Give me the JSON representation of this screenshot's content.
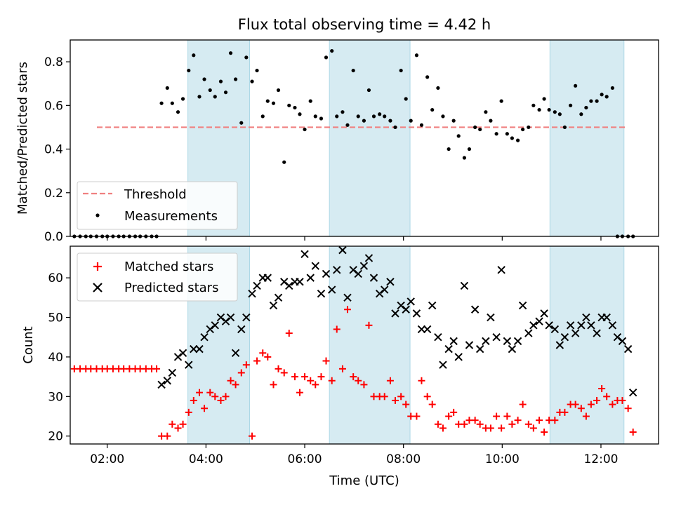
{
  "chart_data": [
    {
      "type": "scatter",
      "title": "Flux total observing time = 4.42 h",
      "xlabel": "",
      "ylabel": "Matched/Predicted stars",
      "xlim": [
        "01:15",
        "13:10"
      ],
      "ylim": [
        0,
        0.9
      ],
      "yticks": [
        "0.0",
        "0.2",
        "0.4",
        "0.6",
        "0.8"
      ],
      "grid": false,
      "legend_position": "lower-left",
      "highlight_windows": [
        [
          "03:38",
          "04:53"
        ],
        [
          "06:30",
          "08:08"
        ],
        [
          "10:58",
          "12:28"
        ]
      ],
      "series": [
        {
          "name": "Threshold",
          "style": "dashed-line",
          "color": "#f08080",
          "x": [
            "01:15",
            "12:30"
          ],
          "y": [
            0.5,
            0.5
          ]
        },
        {
          "name": "Measurements",
          "style": "dot",
          "color": "#000000",
          "x": [
            "01:20",
            "01:27",
            "01:34",
            "01:40",
            "01:47",
            "01:54",
            "02:00",
            "02:07",
            "02:14",
            "02:20",
            "02:27",
            "02:34",
            "02:40",
            "02:47",
            "02:54",
            "03:00",
            "03:06",
            "03:13",
            "03:19",
            "03:26",
            "03:32",
            "03:39",
            "03:45",
            "03:52",
            "03:58",
            "04:05",
            "04:11",
            "04:18",
            "04:24",
            "04:30",
            "04:36",
            "04:43",
            "04:49",
            "04:56",
            "05:02",
            "05:09",
            "05:15",
            "05:22",
            "05:28",
            "05:35",
            "05:41",
            "05:48",
            "05:54",
            "06:00",
            "06:07",
            "06:13",
            "06:20",
            "06:26",
            "06:33",
            "06:39",
            "06:46",
            "06:52",
            "06:59",
            "07:05",
            "07:12",
            "07:18",
            "07:24",
            "07:31",
            "07:37",
            "07:44",
            "07:50",
            "07:57",
            "08:03",
            "08:09",
            "08:16",
            "08:22",
            "08:29",
            "08:35",
            "08:42",
            "08:48",
            "08:55",
            "09:01",
            "09:07",
            "09:14",
            "09:20",
            "09:27",
            "09:33",
            "09:40",
            "09:46",
            "09:53",
            "09:59",
            "10:06",
            "10:12",
            "10:19",
            "10:25",
            "10:32",
            "10:38",
            "10:45",
            "10:51",
            "10:57",
            "11:04",
            "11:10",
            "11:16",
            "11:23",
            "11:29",
            "11:36",
            "11:42",
            "11:48",
            "11:55",
            "12:01",
            "12:07",
            "12:14",
            "12:20",
            "12:26",
            "12:33",
            "12:39"
          ],
          "y": [
            0,
            0,
            0,
            0,
            0,
            0,
            0,
            0,
            0,
            0,
            0,
            0,
            0,
            0,
            0,
            0,
            0.61,
            0.68,
            0.61,
            0.57,
            0.63,
            0.76,
            0.83,
            0.64,
            0.72,
            0.67,
            0.64,
            0.71,
            0.66,
            0.84,
            0.72,
            0.52,
            0.82,
            0.71,
            0.76,
            0.55,
            0.62,
            0.61,
            0.67,
            0.34,
            0.6,
            0.59,
            0.56,
            0.49,
            0.62,
            0.55,
            0.54,
            0.82,
            0.85,
            0.55,
            0.57,
            0.51,
            0.76,
            0.55,
            0.53,
            0.67,
            0.55,
            0.56,
            0.55,
            0.53,
            0.5,
            0.76,
            0.63,
            0.53,
            0.83,
            0.51,
            0.73,
            0.58,
            0.68,
            0.55,
            0.4,
            0.53,
            0.46,
            0.36,
            0.4,
            0.5,
            0.49,
            0.57,
            0.53,
            0.47,
            0.62,
            0.47,
            0.45,
            0.44,
            0.49,
            0.5,
            0.6,
            0.58,
            0.63,
            0.58,
            0.57,
            0.56,
            0.5,
            0.6,
            0.69,
            0.56,
            0.59,
            0.62,
            0.62,
            0.65,
            0.64,
            0.68,
            0.0,
            0.0,
            0.0,
            0.0
          ]
        }
      ]
    },
    {
      "type": "scatter",
      "title": "",
      "xlabel": "Time (UTC)",
      "ylabel": "Count",
      "xlim": [
        "01:15",
        "13:10"
      ],
      "ylim": [
        18,
        68
      ],
      "xticks": [
        "02:00",
        "04:00",
        "06:00",
        "08:00",
        "10:00",
        "12:00"
      ],
      "yticks": [
        "20",
        "30",
        "40",
        "50",
        "60"
      ],
      "grid": false,
      "legend_position": "top-left",
      "highlight_windows": [
        [
          "03:38",
          "04:53"
        ],
        [
          "06:30",
          "08:08"
        ],
        [
          "10:58",
          "12:28"
        ]
      ],
      "series": [
        {
          "name": "Matched stars",
          "marker": "+",
          "color": "#ff0000",
          "x": [
            "01:20",
            "01:27",
            "01:34",
            "01:40",
            "01:47",
            "01:54",
            "02:00",
            "02:07",
            "02:14",
            "02:20",
            "02:27",
            "02:34",
            "02:40",
            "02:47",
            "02:54",
            "03:00",
            "03:06",
            "03:13",
            "03:19",
            "03:26",
            "03:32",
            "03:39",
            "03:45",
            "03:52",
            "03:58",
            "04:05",
            "04:11",
            "04:18",
            "04:24",
            "04:30",
            "04:36",
            "04:43",
            "04:49",
            "04:56",
            "05:02",
            "05:09",
            "05:15",
            "05:22",
            "05:28",
            "05:35",
            "05:41",
            "05:48",
            "05:54",
            "06:00",
            "06:07",
            "06:13",
            "06:20",
            "06:26",
            "06:33",
            "06:39",
            "06:46",
            "06:52",
            "06:59",
            "07:05",
            "07:12",
            "07:18",
            "07:24",
            "07:31",
            "07:37",
            "07:44",
            "07:50",
            "07:57",
            "08:03",
            "08:09",
            "08:16",
            "08:22",
            "08:29",
            "08:35",
            "08:42",
            "08:48",
            "08:55",
            "09:01",
            "09:07",
            "09:14",
            "09:20",
            "09:27",
            "09:33",
            "09:40",
            "09:46",
            "09:53",
            "09:59",
            "10:06",
            "10:12",
            "10:19",
            "10:25",
            "10:32",
            "10:38",
            "10:45",
            "10:51",
            "10:57",
            "11:04",
            "11:10",
            "11:16",
            "11:23",
            "11:29",
            "11:36",
            "11:42",
            "11:48",
            "11:55",
            "12:01",
            "12:07",
            "12:14",
            "12:20",
            "12:26",
            "12:33",
            "12:39"
          ],
          "y": [
            37,
            37,
            37,
            37,
            37,
            37,
            37,
            37,
            37,
            37,
            37,
            37,
            37,
            37,
            37,
            37,
            20,
            20,
            23,
            22,
            23,
            26,
            29,
            31,
            27,
            31,
            30,
            29,
            30,
            34,
            33,
            36,
            38,
            20,
            39,
            41,
            40,
            33,
            37,
            36,
            46,
            35,
            31,
            35,
            34,
            33,
            35,
            39,
            34,
            47,
            37,
            52,
            35,
            34,
            33,
            48,
            30,
            30,
            30,
            34,
            29,
            30,
            28,
            25,
            25,
            34,
            30,
            28,
            23,
            22,
            25,
            26,
            23,
            23,
            24,
            24,
            23,
            22,
            22,
            25,
            22,
            25,
            23,
            24,
            28,
            23,
            22,
            24,
            21,
            24,
            24,
            26,
            26,
            28,
            28,
            27,
            25,
            28,
            29,
            32,
            30,
            28,
            29,
            29,
            27,
            21
          ]
        },
        {
          "name": "Predicted stars",
          "marker": "x",
          "color": "#000000",
          "x": [
            "03:06",
            "03:13",
            "03:19",
            "03:26",
            "03:32",
            "03:39",
            "03:45",
            "03:52",
            "03:58",
            "04:05",
            "04:11",
            "04:18",
            "04:24",
            "04:30",
            "04:36",
            "04:43",
            "04:49",
            "04:56",
            "05:02",
            "05:09",
            "05:15",
            "05:22",
            "05:28",
            "05:35",
            "05:41",
            "05:48",
            "05:54",
            "06:00",
            "06:07",
            "06:13",
            "06:20",
            "06:26",
            "06:33",
            "06:39",
            "06:46",
            "06:52",
            "06:59",
            "07:05",
            "07:12",
            "07:18",
            "07:24",
            "07:31",
            "07:37",
            "07:44",
            "07:50",
            "07:57",
            "08:03",
            "08:09",
            "08:16",
            "08:22",
            "08:29",
            "08:35",
            "08:42",
            "08:48",
            "08:55",
            "09:01",
            "09:07",
            "09:14",
            "09:20",
            "09:27",
            "09:33",
            "09:40",
            "09:46",
            "09:53",
            "09:59",
            "10:06",
            "10:12",
            "10:19",
            "10:25",
            "10:32",
            "10:38",
            "10:45",
            "10:51",
            "10:57",
            "11:04",
            "11:10",
            "11:16",
            "11:23",
            "11:29",
            "11:36",
            "11:42",
            "11:48",
            "11:55",
            "12:01",
            "12:07",
            "12:14",
            "12:20",
            "12:26",
            "12:33",
            "12:39"
          ],
          "y": [
            33,
            34,
            36,
            40,
            41,
            38,
            42,
            42,
            45,
            47,
            48,
            50,
            49,
            50,
            41,
            47,
            50,
            56,
            58,
            60,
            60,
            53,
            55,
            59,
            58,
            59,
            59,
            66,
            60,
            63,
            56,
            61,
            57,
            62,
            67,
            55,
            62,
            61,
            63,
            65,
            60,
            56,
            57,
            59,
            51,
            53,
            52,
            54,
            51,
            47,
            47,
            53,
            45,
            38,
            42,
            44,
            40,
            58,
            43,
            52,
            42,
            44,
            50,
            45,
            62,
            44,
            42,
            44,
            53,
            46,
            48,
            49,
            51,
            48,
            47,
            43,
            45,
            48,
            46,
            48,
            50,
            48,
            46,
            50,
            50,
            48,
            45,
            44,
            42,
            31
          ]
        }
      ]
    }
  ]
}
